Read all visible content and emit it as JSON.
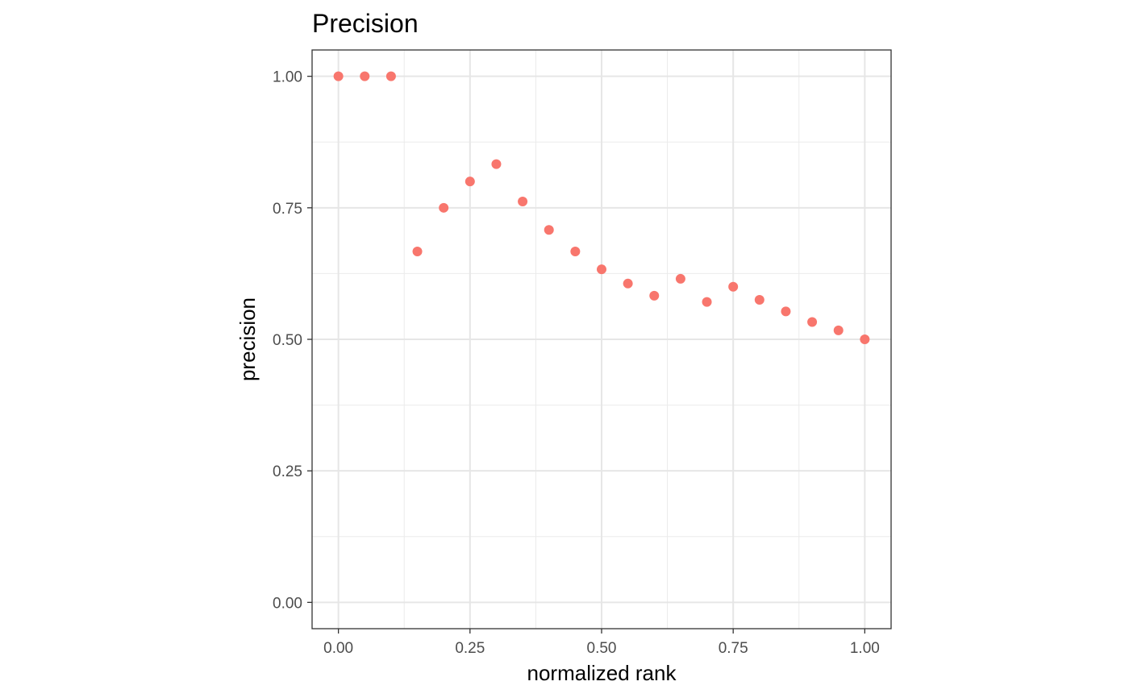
{
  "chart_data": {
    "type": "scatter",
    "title": "Precision",
    "xlabel": "normalized rank",
    "ylabel": "precision",
    "xlim": [
      -0.05,
      1.05
    ],
    "ylim": [
      -0.05,
      1.05
    ],
    "x_ticks": [
      0,
      0.25,
      0.5,
      0.75,
      1
    ],
    "x_tick_labels": [
      "0.00",
      "0.25",
      "0.50",
      "0.75",
      "1.00"
    ],
    "y_ticks": [
      0,
      0.25,
      0.5,
      0.75,
      1
    ],
    "y_tick_labels": [
      "0.00",
      "0.25",
      "0.50",
      "0.75",
      "1.00"
    ],
    "x_minor_ticks": [
      0.125,
      0.375,
      0.625,
      0.875
    ],
    "y_minor_ticks": [
      0.125,
      0.375,
      0.625,
      0.875
    ],
    "grid": true,
    "theme": "bw",
    "point_color": "#F8766D",
    "series": [
      {
        "x": [
          0,
          0.05,
          0.1,
          0.15,
          0.2,
          0.25,
          0.3,
          0.35,
          0.4,
          0.45,
          0.5,
          0.55,
          0.6,
          0.65,
          0.7,
          0.75,
          0.8,
          0.85,
          0.9,
          0.95,
          1
        ],
        "y": [
          1,
          1,
          1,
          0.667,
          0.75,
          0.8,
          0.833,
          0.762,
          0.708,
          0.667,
          0.633,
          0.606,
          0.583,
          0.615,
          0.571,
          0.6,
          0.575,
          0.553,
          0.533,
          0.517,
          0.5
        ]
      }
    ]
  }
}
